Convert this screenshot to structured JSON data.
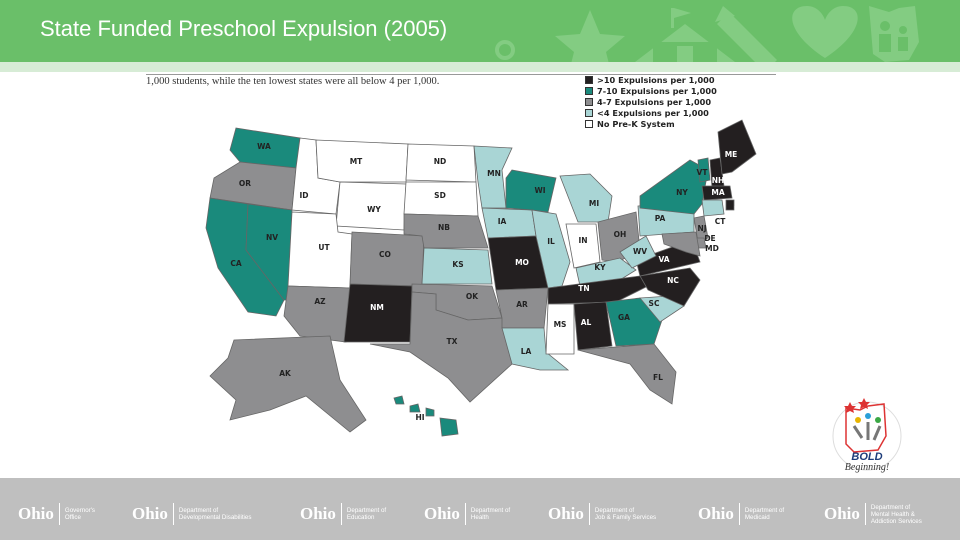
{
  "header": {
    "title": "State Funded Preschool Expulsion (2005)",
    "bg_color": "#6abf69",
    "icons": [
      "star-icon",
      "schoolhouse-icon",
      "pencil-icon",
      "heart-icon",
      "ohio-family-icon"
    ]
  },
  "intro_text": "1,000 students, while the ten lowest states were all below 4 per 1,000.",
  "legend": [
    {
      "label": ">10 Expulsions per 1,000",
      "color": "#231f20"
    },
    {
      "label": "7-10 Expulsions per 1,000",
      "color": "#1a8a7c"
    },
    {
      "label": "4-7 Expulsions per 1,000",
      "color": "#8e8e90"
    },
    {
      "label": "<4 Expulsions per 1,000",
      "color": "#a9d5d5"
    },
    {
      "label": "No Pre-K System",
      "color": "#ffffff"
    }
  ],
  "states": [
    {
      "code": "WA",
      "cat": 1
    },
    {
      "code": "OR",
      "cat": 2
    },
    {
      "code": "CA",
      "cat": 1
    },
    {
      "code": "NV",
      "cat": 1
    },
    {
      "code": "ID",
      "cat": 4
    },
    {
      "code": "MT",
      "cat": 4
    },
    {
      "code": "WY",
      "cat": 4
    },
    {
      "code": "UT",
      "cat": 4
    },
    {
      "code": "AZ",
      "cat": 2
    },
    {
      "code": "CO",
      "cat": 2
    },
    {
      "code": "NM",
      "cat": 0
    },
    {
      "code": "ND",
      "cat": 4
    },
    {
      "code": "SD",
      "cat": 4
    },
    {
      "code": "NB",
      "cat": 2
    },
    {
      "code": "KS",
      "cat": 3
    },
    {
      "code": "OK",
      "cat": 2
    },
    {
      "code": "TX",
      "cat": 2
    },
    {
      "code": "MN",
      "cat": 3
    },
    {
      "code": "IA",
      "cat": 3
    },
    {
      "code": "MO",
      "cat": 0
    },
    {
      "code": "AR",
      "cat": 2
    },
    {
      "code": "LA",
      "cat": 3
    },
    {
      "code": "WI",
      "cat": 1
    },
    {
      "code": "IL",
      "cat": 3
    },
    {
      "code": "MI",
      "cat": 3
    },
    {
      "code": "IN",
      "cat": 4
    },
    {
      "code": "OH",
      "cat": 2
    },
    {
      "code": "KY",
      "cat": 3
    },
    {
      "code": "TN",
      "cat": 0
    },
    {
      "code": "MS",
      "cat": 4
    },
    {
      "code": "AL",
      "cat": 0
    },
    {
      "code": "GA",
      "cat": 1
    },
    {
      "code": "FL",
      "cat": 2
    },
    {
      "code": "SC",
      "cat": 3
    },
    {
      "code": "NC",
      "cat": 0
    },
    {
      "code": "VA",
      "cat": 0
    },
    {
      "code": "WV",
      "cat": 3
    },
    {
      "code": "PA",
      "cat": 3
    },
    {
      "code": "NY",
      "cat": 1
    },
    {
      "code": "VT",
      "cat": 1
    },
    {
      "code": "NH",
      "cat": 0
    },
    {
      "code": "ME",
      "cat": 0
    },
    {
      "code": "MA",
      "cat": 0
    },
    {
      "code": "RI",
      "cat": 0
    },
    {
      "code": "CT",
      "cat": 3
    },
    {
      "code": "NJ",
      "cat": 2
    },
    {
      "code": "DE",
      "cat": 2
    },
    {
      "code": "MD",
      "cat": 2
    },
    {
      "code": "AK",
      "cat": 2
    },
    {
      "code": "HI",
      "cat": 1
    }
  ],
  "bold_logo": {
    "line1": "BOLD",
    "line2": "Beginning!"
  },
  "footer": {
    "bg_color": "#bfbfbf",
    "agencies": [
      {
        "ohio": "Ohio",
        "name": "Governor's\nOffice"
      },
      {
        "ohio": "Ohio",
        "name": "Department of\nDevelopmental Disabilities"
      },
      {
        "ohio": "Ohio",
        "name": "Department of\nEducation"
      },
      {
        "ohio": "Ohio",
        "name": "Department of\nHealth"
      },
      {
        "ohio": "Ohio",
        "name": "Department of\nJob & Family Services"
      },
      {
        "ohio": "Ohio",
        "name": "Department of\nMedicaid"
      },
      {
        "ohio": "Ohio",
        "name": "Department of\nMental Health &\nAddiction Services"
      }
    ]
  }
}
